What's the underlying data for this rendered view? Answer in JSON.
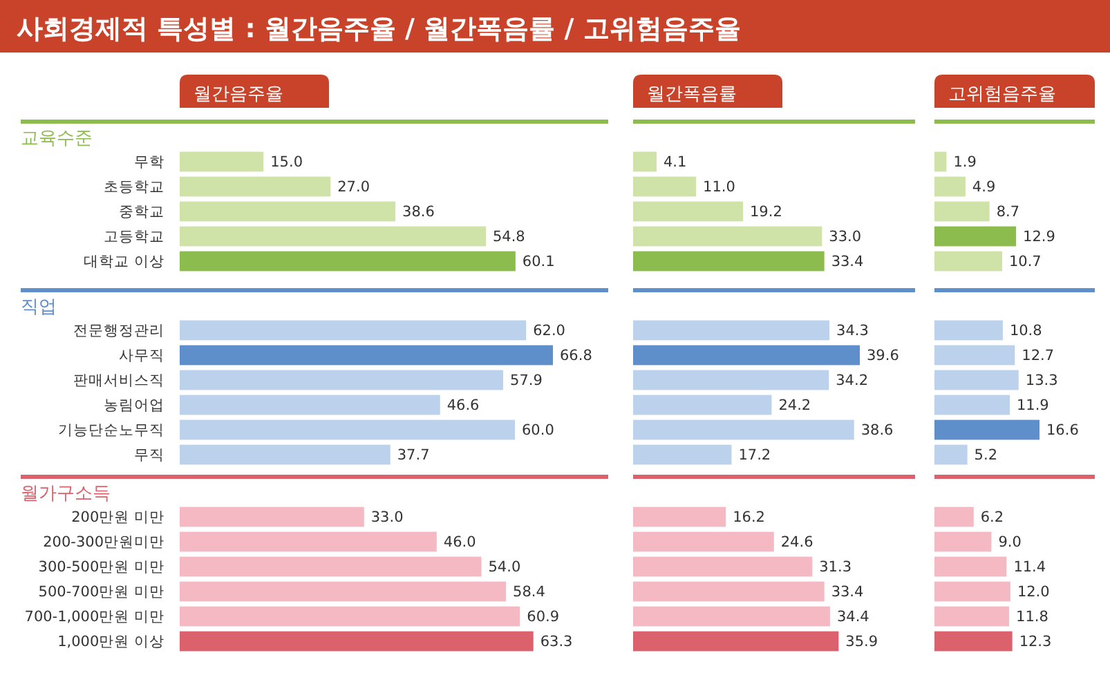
{
  "chart_data": [
    {
      "type": "other",
      "title": "사회경제적 특성별 : 월간음주율 / 월간폭음률 / 고위험음주율"
    },
    {
      "type": "bar",
      "orientation": "horizontal",
      "title": "월간음주율",
      "ylabel": "교육수준",
      "tick_labels": "y",
      "categories": [
        "무학",
        "초등학교",
        "중학교",
        "고등학교",
        "대학교 이상"
      ],
      "values": [
        15.0,
        27.0,
        38.6,
        54.8,
        60.1
      ],
      "value_labels": [
        "15.0",
        "27.0",
        "38.6",
        "54.8",
        "60.1"
      ],
      "colors": [
        "#cfe3a8",
        "#cfe3a8",
        "#cfe3a8",
        "#cfe3a8",
        "#8cbb4e"
      ]
    },
    {
      "type": "bar",
      "orientation": "horizontal",
      "title": "월간폭음률",
      "tick_labels": false,
      "categories": [
        null,
        null,
        null,
        null,
        null
      ],
      "values": [
        4.1,
        11.0,
        19.2,
        33.0,
        33.4
      ],
      "value_labels": [
        "4.1",
        "11.0",
        "19.2",
        "33.0",
        "33.4"
      ],
      "colors": [
        "#cfe3a8",
        "#cfe3a8",
        "#cfe3a8",
        "#cfe3a8",
        "#8cbb4e"
      ]
    },
    {
      "type": "bar",
      "orientation": "horizontal",
      "title": "고위험음주율",
      "tick_labels": false,
      "categories": [
        null,
        null,
        null,
        null,
        null
      ],
      "values": [
        1.9,
        4.9,
        8.7,
        12.9,
        10.7
      ],
      "value_labels": [
        "1.9",
        "4.9",
        "8.7",
        "12.9",
        "10.7"
      ],
      "colors": [
        "#cfe3a8",
        "#cfe3a8",
        "#cfe3a8",
        "#8cbb4e",
        "#cfe3a8"
      ]
    },
    {
      "type": "bar",
      "orientation": "horizontal",
      "ylabel": "직업",
      "tick_labels": "y",
      "categories": [
        "전문행정관리",
        "사무직",
        "판매서비스직",
        "농림어업",
        "기능단순노무직",
        "무직"
      ],
      "values": [
        62.0,
        66.8,
        57.9,
        46.6,
        60.0,
        37.7
      ],
      "value_labels": [
        "62.0",
        "66.8",
        "57.9",
        "46.6",
        "60.0",
        "37.7"
      ],
      "colors": [
        "#bcd1ec",
        "#5e8fcb",
        "#bcd1ec",
        "#bcd1ec",
        "#bcd1ec",
        "#bcd1ec"
      ]
    },
    {
      "type": "bar",
      "orientation": "horizontal",
      "tick_labels": false,
      "categories": [
        null,
        null,
        null,
        null,
        null,
        null
      ],
      "values": [
        34.3,
        39.6,
        34.2,
        24.2,
        38.6,
        17.2
      ],
      "value_labels": [
        "34.3",
        "39.6",
        "34.2",
        "24.2",
        "38.6",
        "17.2"
      ],
      "colors": [
        "#bcd1ec",
        "#5e8fcb",
        "#bcd1ec",
        "#bcd1ec",
        "#bcd1ec",
        "#bcd1ec"
      ]
    },
    {
      "type": "bar",
      "orientation": "horizontal",
      "tick_labels": false,
      "categories": [
        null,
        null,
        null,
        null,
        null,
        null
      ],
      "values": [
        10.8,
        12.7,
        13.3,
        11.9,
        16.6,
        5.2
      ],
      "value_labels": [
        "10.8",
        "12.7",
        "13.3",
        "11.9",
        "16.6",
        "5.2"
      ],
      "colors": [
        "#bcd1ec",
        "#bcd1ec",
        "#bcd1ec",
        "#bcd1ec",
        "#5e8fcb",
        "#bcd1ec"
      ]
    },
    {
      "type": "bar",
      "orientation": "horizontal",
      "ylabel": "월가구소득",
      "tick_labels": "y",
      "categories": [
        "200만원 미만",
        "200-300만원미만",
        "300-500만원 미만",
        "500-700만원 미만",
        "700-1,000만원 미만",
        "1,000만원 이상"
      ],
      "values": [
        33.0,
        46.0,
        54.0,
        58.4,
        60.9,
        63.3
      ],
      "value_labels": [
        "33.0",
        "46.0",
        "54.0",
        "58.4",
        "60.9",
        "63.3"
      ],
      "colors": [
        "#f5b9c3",
        "#f5b9c3",
        "#f5b9c3",
        "#f5b9c3",
        "#f5b9c3",
        "#db626d"
      ]
    },
    {
      "type": "bar",
      "orientation": "horizontal",
      "tick_labels": false,
      "categories": [
        null,
        null,
        null,
        null,
        null,
        null
      ],
      "values": [
        16.2,
        24.6,
        31.3,
        33.4,
        34.4,
        35.9
      ],
      "value_labels": [
        "16.2",
        "24.6",
        "31.3",
        "33.4",
        "34.4",
        "35.9"
      ],
      "colors": [
        "#f5b9c3",
        "#f5b9c3",
        "#f5b9c3",
        "#f5b9c3",
        "#f5b9c3",
        "#db626d"
      ]
    },
    {
      "type": "bar",
      "orientation": "horizontal",
      "tick_labels": false,
      "categories": [
        null,
        null,
        null,
        null,
        null,
        null
      ],
      "values": [
        6.2,
        9.0,
        11.4,
        12.0,
        11.8,
        12.3
      ],
      "value_labels": [
        "6.2",
        "9.0",
        "11.4",
        "12.0",
        "11.8",
        "12.3"
      ],
      "colors": [
        "#f5b9c3",
        "#f5b9c3",
        "#f5b9c3",
        "#f5b9c3",
        "#f5b9c3",
        "#db626d"
      ]
    }
  ]
}
